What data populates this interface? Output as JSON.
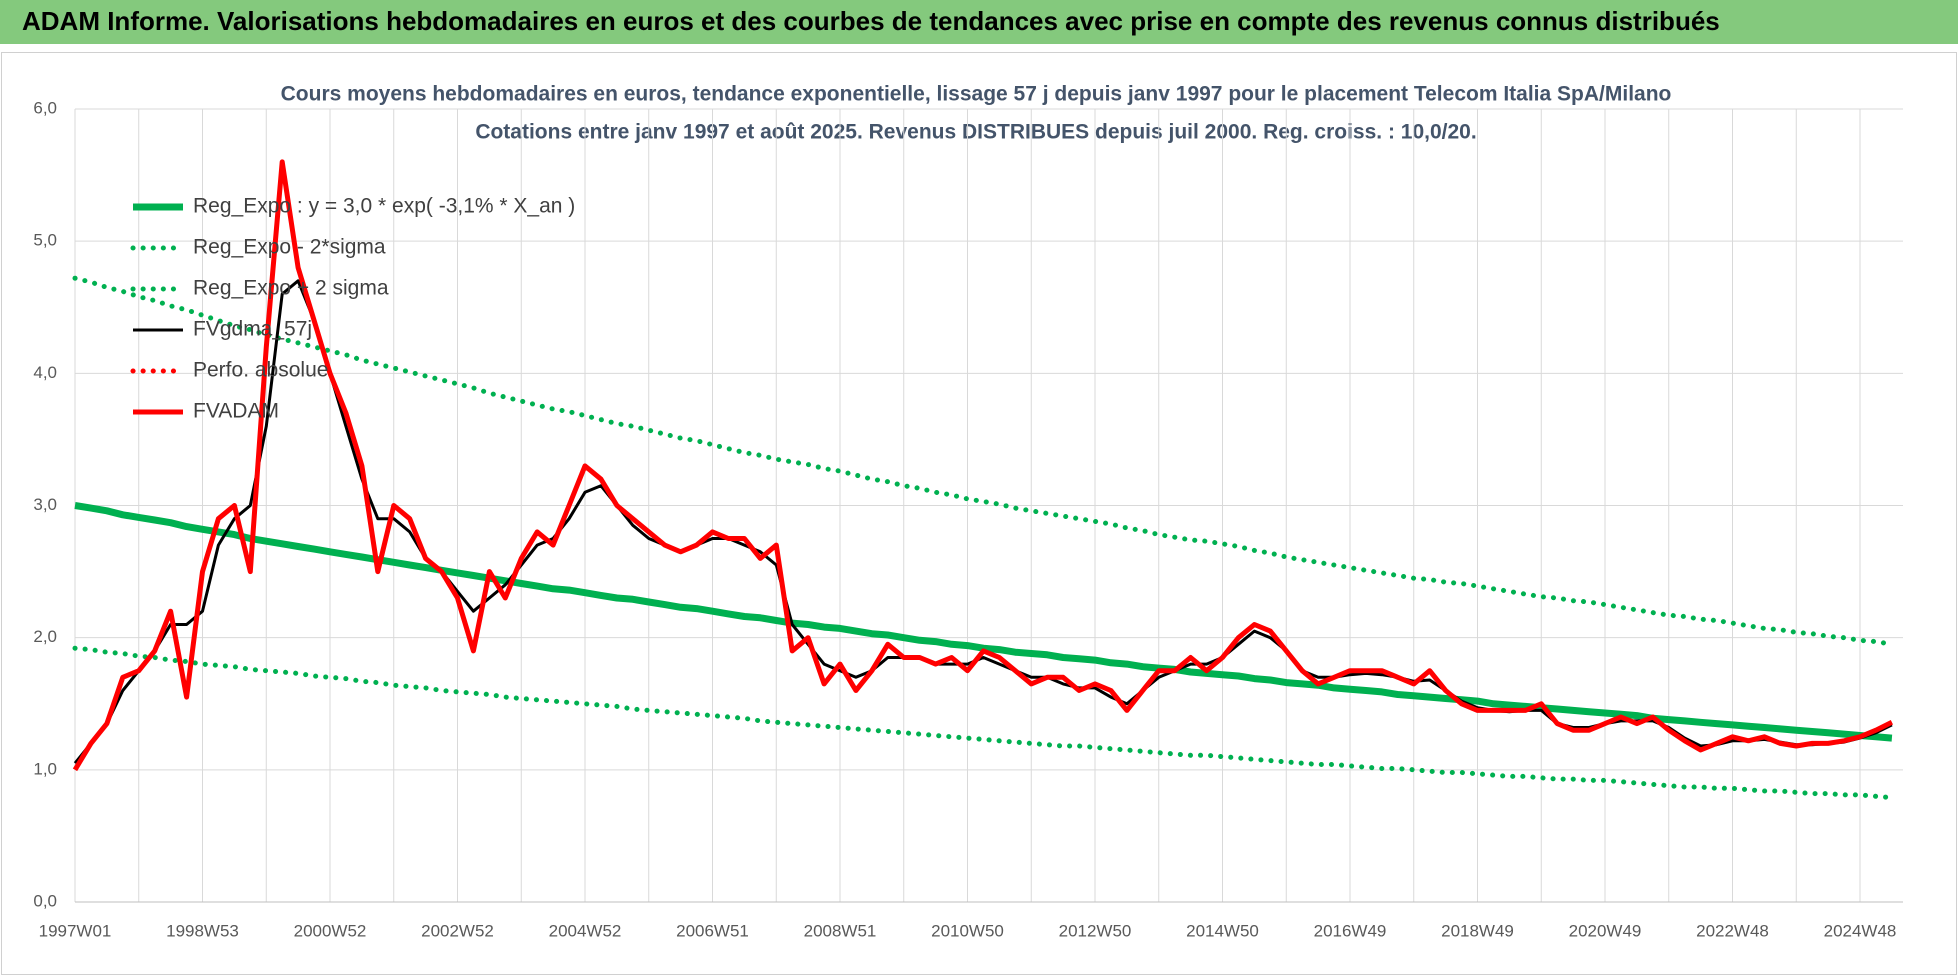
{
  "header": {
    "title": "ADAM Informe. Valorisations hebdomadaires en euros et des courbes de tendances avec prise en compte des revenus connus distribués"
  },
  "chart_data": {
    "type": "line",
    "title": "Cours moyens hebdomadaires en euros, tendance exponentielle, lissage 57 j depuis janv 1997  pour le placement Telecom Italia SpA/Milano",
    "subtitle": "Cotations entre janv 1997 et août 2025.  Revenus DISTRIBUES depuis juil 2000.  Reg. croiss. : 10,0/20.",
    "ylim": [
      0,
      6
    ],
    "yticks": [
      {
        "value": 0,
        "label": "0,0"
      },
      {
        "value": 1,
        "label": "1,0"
      },
      {
        "value": 2,
        "label": "2,0"
      },
      {
        "value": 3,
        "label": "3,0"
      },
      {
        "value": 4,
        "label": "4,0"
      },
      {
        "value": 5,
        "label": "5,0"
      },
      {
        "value": 6,
        "label": "6,0"
      }
    ],
    "grid": true,
    "legend": "top-left",
    "categories": [
      "1997W01",
      null,
      null,
      null,
      null,
      null,
      null,
      null,
      "1998W53",
      null,
      null,
      null,
      null,
      null,
      null,
      null,
      "2000W52",
      null,
      null,
      null,
      null,
      null,
      null,
      null,
      "2002W52",
      null,
      null,
      null,
      null,
      null,
      null,
      null,
      "2004W52",
      null,
      null,
      null,
      null,
      null,
      null,
      null,
      "2006W51",
      null,
      null,
      null,
      null,
      null,
      null,
      null,
      "2008W51",
      null,
      null,
      null,
      null,
      null,
      null,
      null,
      "2010W50",
      null,
      null,
      null,
      null,
      null,
      null,
      null,
      "2012W50",
      null,
      null,
      null,
      null,
      null,
      null,
      null,
      "2014W50",
      null,
      null,
      null,
      null,
      null,
      null,
      null,
      "2016W49",
      null,
      null,
      null,
      null,
      null,
      null,
      null,
      "2018W49",
      null,
      null,
      null,
      null,
      null,
      null,
      null,
      "2020W49",
      null,
      null,
      null,
      null,
      null,
      null,
      null,
      "2022W48",
      null,
      null,
      null,
      null,
      null,
      null,
      null,
      "2024W48",
      null,
      null
    ],
    "series": [
      {
        "name": "Reg_Expo : y = 3,0 * exp( -3,1% *  X_an )",
        "color": "#00b050",
        "style": "solid",
        "values": [
          3.0,
          2.98,
          2.96,
          2.93,
          2.91,
          2.89,
          2.87,
          2.84,
          2.82,
          2.8,
          2.78,
          2.75,
          2.73,
          2.71,
          2.69,
          2.67,
          2.65,
          2.63,
          2.61,
          2.59,
          2.57,
          2.55,
          2.53,
          2.51,
          2.49,
          2.47,
          2.45,
          2.43,
          2.41,
          2.39,
          2.37,
          2.36,
          2.34,
          2.32,
          2.3,
          2.29,
          2.27,
          2.25,
          2.23,
          2.22,
          2.2,
          2.18,
          2.16,
          2.15,
          2.13,
          2.11,
          2.1,
          2.08,
          2.07,
          2.05,
          2.03,
          2.02,
          2.0,
          1.98,
          1.97,
          1.95,
          1.94,
          1.92,
          1.91,
          1.89,
          1.88,
          1.87,
          1.85,
          1.84,
          1.83,
          1.81,
          1.8,
          1.78,
          1.77,
          1.76,
          1.74,
          1.73,
          1.72,
          1.71,
          1.69,
          1.68,
          1.66,
          1.65,
          1.64,
          1.62,
          1.61,
          1.6,
          1.59,
          1.57,
          1.56,
          1.55,
          1.54,
          1.53,
          1.52,
          1.5,
          1.49,
          1.48,
          1.47,
          1.46,
          1.45,
          1.44,
          1.43,
          1.42,
          1.41,
          1.39,
          1.38,
          1.37,
          1.36,
          1.35,
          1.34,
          1.33,
          1.32,
          1.31,
          1.3,
          1.29,
          1.28,
          1.27,
          1.26,
          1.25,
          1.24
        ]
      },
      {
        "name": "Reg_Expo - 2*sigma",
        "color": "#00b050",
        "style": "dotted",
        "values": [
          1.92,
          1.91,
          1.89,
          1.88,
          1.86,
          1.85,
          1.83,
          1.82,
          1.8,
          1.79,
          1.78,
          1.76,
          1.75,
          1.74,
          1.73,
          1.71,
          1.7,
          1.69,
          1.67,
          1.66,
          1.64,
          1.63,
          1.62,
          1.6,
          1.59,
          1.58,
          1.57,
          1.55,
          1.54,
          1.53,
          1.52,
          1.51,
          1.5,
          1.49,
          1.48,
          1.46,
          1.45,
          1.44,
          1.43,
          1.42,
          1.41,
          1.4,
          1.39,
          1.37,
          1.36,
          1.35,
          1.34,
          1.33,
          1.32,
          1.31,
          1.3,
          1.29,
          1.28,
          1.27,
          1.26,
          1.25,
          1.24,
          1.23,
          1.22,
          1.21,
          1.2,
          1.19,
          1.18,
          1.18,
          1.17,
          1.16,
          1.15,
          1.14,
          1.13,
          1.12,
          1.11,
          1.11,
          1.1,
          1.09,
          1.08,
          1.07,
          1.06,
          1.05,
          1.04,
          1.04,
          1.03,
          1.02,
          1.01,
          1.01,
          1.0,
          0.99,
          0.98,
          0.98,
          0.97,
          0.96,
          0.95,
          0.95,
          0.94,
          0.93,
          0.93,
          0.92,
          0.92,
          0.91,
          0.9,
          0.89,
          0.88,
          0.87,
          0.87,
          0.86,
          0.86,
          0.85,
          0.84,
          0.84,
          0.83,
          0.82,
          0.82,
          0.81,
          0.81,
          0.8,
          0.79
        ]
      },
      {
        "name": "Reg_Expo + 2 sigma",
        "color": "#00b050",
        "style": "dotted",
        "values": [
          4.72,
          4.69,
          4.65,
          4.62,
          4.58,
          4.55,
          4.51,
          4.48,
          4.44,
          4.4,
          4.36,
          4.33,
          4.29,
          4.26,
          4.23,
          4.2,
          4.17,
          4.14,
          4.1,
          4.07,
          4.04,
          4.01,
          3.98,
          3.95,
          3.92,
          3.89,
          3.85,
          3.82,
          3.79,
          3.76,
          3.73,
          3.71,
          3.68,
          3.65,
          3.62,
          3.6,
          3.57,
          3.54,
          3.51,
          3.49,
          3.46,
          3.43,
          3.4,
          3.38,
          3.35,
          3.33,
          3.31,
          3.28,
          3.26,
          3.23,
          3.2,
          3.18,
          3.15,
          3.13,
          3.1,
          3.08,
          3.05,
          3.03,
          3.01,
          2.98,
          2.96,
          2.94,
          2.92,
          2.9,
          2.88,
          2.86,
          2.83,
          2.81,
          2.78,
          2.76,
          2.74,
          2.73,
          2.71,
          2.69,
          2.66,
          2.64,
          2.61,
          2.59,
          2.57,
          2.55,
          2.53,
          2.51,
          2.49,
          2.47,
          2.45,
          2.44,
          2.42,
          2.41,
          2.39,
          2.37,
          2.35,
          2.33,
          2.31,
          2.3,
          2.28,
          2.27,
          2.25,
          2.23,
          2.21,
          2.19,
          2.17,
          2.16,
          2.14,
          2.13,
          2.11,
          2.09,
          2.07,
          2.06,
          2.04,
          2.03,
          2.01,
          2.0,
          1.98,
          1.97,
          1.95
        ]
      },
      {
        "name": "FVgdma_57j",
        "color": "#000000",
        "style": "solid",
        "values": [
          1.05,
          1.2,
          1.35,
          1.6,
          1.75,
          1.9,
          2.1,
          2.1,
          2.2,
          2.7,
          2.9,
          3.0,
          3.6,
          4.6,
          4.7,
          4.4,
          4.0,
          3.6,
          3.2,
          2.9,
          2.9,
          2.8,
          2.6,
          2.5,
          2.35,
          2.2,
          2.3,
          2.4,
          2.55,
          2.7,
          2.75,
          2.9,
          3.1,
          3.15,
          3.0,
          2.85,
          2.75,
          2.7,
          2.65,
          2.7,
          2.75,
          2.75,
          2.7,
          2.65,
          2.55,
          2.1,
          1.95,
          1.8,
          1.75,
          1.7,
          1.75,
          1.85,
          1.85,
          1.85,
          1.8,
          1.8,
          1.8,
          1.85,
          1.8,
          1.75,
          1.7,
          1.7,
          1.65,
          1.62,
          1.62,
          1.55,
          1.5,
          1.6,
          1.7,
          1.75,
          1.8,
          1.8,
          1.85,
          1.95,
          2.05,
          2.0,
          1.9,
          1.75,
          1.7,
          1.7,
          1.72,
          1.73,
          1.72,
          1.7,
          1.67,
          1.68,
          1.6,
          1.52,
          1.47,
          1.45,
          1.44,
          1.45,
          1.45,
          1.35,
          1.32,
          1.32,
          1.35,
          1.37,
          1.37,
          1.37,
          1.32,
          1.24,
          1.18,
          1.19,
          1.22,
          1.22,
          1.23,
          1.21,
          1.19,
          1.19,
          1.2,
          1.21,
          1.24,
          1.28,
          1.34
        ]
      },
      {
        "name": "Perfo. absolue",
        "color": "#ff0000",
        "style": "dotted",
        "values": [
          null,
          null,
          null,
          null,
          null,
          null,
          null,
          null,
          null,
          null,
          null,
          null,
          null,
          null,
          null,
          null,
          null,
          null,
          null,
          null,
          null,
          null,
          null,
          null,
          null,
          null,
          null,
          null,
          null,
          null,
          null,
          null,
          null,
          null,
          null,
          null,
          null,
          null,
          null,
          null,
          null,
          null,
          null,
          null,
          null,
          null,
          null,
          null,
          null,
          null,
          null,
          null,
          null,
          null,
          null,
          null,
          null,
          null,
          null,
          null,
          null,
          null,
          null,
          null,
          null,
          null,
          null,
          null,
          null,
          null,
          null,
          null,
          null,
          null,
          null,
          null,
          null,
          null,
          null,
          null,
          null,
          null,
          null,
          null,
          null,
          null,
          null,
          null,
          null,
          null,
          null,
          null,
          null,
          null,
          null,
          null,
          null,
          null,
          null,
          null,
          null,
          null,
          null,
          null,
          null,
          null,
          null,
          null,
          null,
          null,
          null,
          null,
          null,
          null,
          null
        ]
      },
      {
        "name": "FVADAM",
        "color": "#ff0000",
        "style": "solid",
        "values": [
          1.0,
          1.2,
          1.35,
          1.7,
          1.75,
          1.9,
          2.2,
          1.55,
          2.5,
          2.9,
          3.0,
          2.5,
          4.2,
          5.6,
          4.8,
          4.4,
          4.0,
          3.7,
          3.3,
          2.5,
          3.0,
          2.9,
          2.6,
          2.5,
          2.3,
          1.9,
          2.5,
          2.3,
          2.6,
          2.8,
          2.7,
          3.0,
          3.3,
          3.2,
          3.0,
          2.9,
          2.8,
          2.7,
          2.65,
          2.7,
          2.8,
          2.75,
          2.75,
          2.6,
          2.7,
          1.9,
          2.0,
          1.65,
          1.8,
          1.6,
          1.75,
          1.95,
          1.85,
          1.85,
          1.8,
          1.85,
          1.75,
          1.9,
          1.85,
          1.75,
          1.65,
          1.7,
          1.7,
          1.6,
          1.65,
          1.6,
          1.45,
          1.6,
          1.75,
          1.75,
          1.85,
          1.75,
          1.85,
          2.0,
          2.1,
          2.05,
          1.9,
          1.75,
          1.65,
          1.7,
          1.75,
          1.75,
          1.75,
          1.7,
          1.65,
          1.75,
          1.6,
          1.5,
          1.45,
          1.45,
          1.45,
          1.45,
          1.5,
          1.35,
          1.3,
          1.3,
          1.35,
          1.4,
          1.35,
          1.4,
          1.3,
          1.22,
          1.15,
          1.2,
          1.25,
          1.22,
          1.25,
          1.2,
          1.18,
          1.2,
          1.2,
          1.22,
          1.25,
          1.3,
          1.36
        ]
      }
    ]
  }
}
